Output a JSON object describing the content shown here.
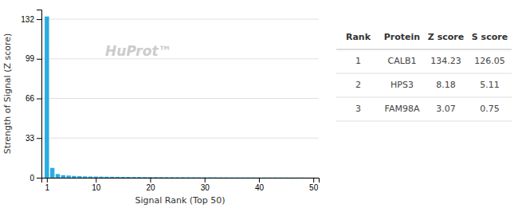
{
  "chart_data": {
    "type": "bar",
    "x": [
      1,
      2,
      3,
      4,
      5,
      6,
      7,
      8,
      9,
      10,
      11,
      12,
      13,
      14,
      15,
      16,
      17,
      18,
      19,
      20,
      21,
      22,
      23,
      24,
      25,
      26,
      27,
      28,
      29,
      30,
      31,
      32,
      33,
      34,
      35,
      36,
      37,
      38,
      39,
      40,
      41,
      42,
      43,
      44,
      45,
      46,
      47,
      48,
      49,
      50
    ],
    "values": [
      134.23,
      8.18,
      3.07,
      2.1,
      1.8,
      1.5,
      1.3,
      1.1,
      1.0,
      0.95,
      0.9,
      0.85,
      0.8,
      0.75,
      0.7,
      0.65,
      0.6,
      0.58,
      0.55,
      0.52,
      0.5,
      0.48,
      0.45,
      0.43,
      0.41,
      0.4,
      0.38,
      0.36,
      0.35,
      0.33,
      0.31,
      0.3,
      0.28,
      0.27,
      0.25,
      0.24,
      0.22,
      0.21,
      0.2,
      0.19,
      0.18,
      0.17,
      0.16,
      0.15,
      0.14,
      0.13,
      0.12,
      0.11,
      0.1,
      0.09
    ],
    "color": "#29ABE2",
    "xlabel": "Signal Rank (Top 50)",
    "ylabel": "Strength of Signal (Z score)",
    "xlim": [
      0,
      51
    ],
    "ylim": [
      0,
      140
    ],
    "xticks": [
      1,
      10,
      20,
      30,
      40,
      50
    ],
    "yticks": [
      0,
      33,
      66,
      99,
      132
    ],
    "grid": true,
    "annotations": [
      "HuProt™"
    ],
    "table": {
      "columns": [
        "Rank",
        "Protein",
        "Z score",
        "S score"
      ],
      "rows": [
        [
          "1",
          "CALB1",
          "134.23",
          "126.05"
        ],
        [
          "2",
          "HPS3",
          "8.18",
          "5.11"
        ],
        [
          "3",
          "FAM98A",
          "3.07",
          "0.75"
        ]
      ]
    }
  }
}
